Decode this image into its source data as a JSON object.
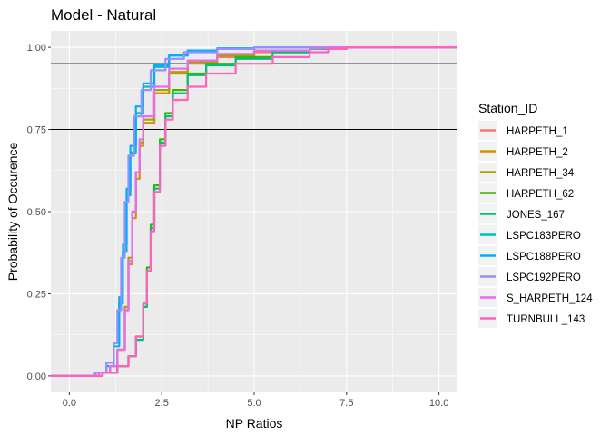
{
  "chart_data": {
    "type": "line",
    "title": "Model - Natural",
    "xlabel": "NP Ratios",
    "ylabel": "Probability of Occurence",
    "xlim": [
      -0.5,
      10.5
    ],
    "ylim": [
      -0.05,
      1.05
    ],
    "x_ticks": [
      {
        "value": 0,
        "label": "0.0"
      },
      {
        "value": 2.5,
        "label": "2.5"
      },
      {
        "value": 5,
        "label": "5.0"
      },
      {
        "value": 7.5,
        "label": "7.5"
      },
      {
        "value": 10,
        "label": "10.0"
      }
    ],
    "y_ticks": [
      {
        "value": 0,
        "label": "0.00"
      },
      {
        "value": 0.25,
        "label": "0.25"
      },
      {
        "value": 0.5,
        "label": "0.50"
      },
      {
        "value": 0.75,
        "label": "0.75"
      },
      {
        "value": 1,
        "label": "1.00"
      }
    ],
    "reference_lines": [
      0.95,
      0.75
    ],
    "grid": true,
    "legend": {
      "title": "Station_ID",
      "placement": "right"
    },
    "series": [
      {
        "name": "HARPETH_1",
        "color": "#F8766D",
        "points": [
          [
            -0.5,
            0
          ],
          [
            0.4,
            0
          ],
          [
            0.8,
            0.01
          ],
          [
            1.1,
            0.03
          ],
          [
            1.3,
            0.08
          ],
          [
            1.5,
            0.2
          ],
          [
            1.6,
            0.35
          ],
          [
            1.7,
            0.5
          ],
          [
            1.8,
            0.62
          ],
          [
            1.9,
            0.71
          ],
          [
            2.0,
            0.77
          ],
          [
            2.3,
            0.86
          ],
          [
            2.7,
            0.92
          ],
          [
            3.2,
            0.95
          ],
          [
            4.0,
            0.97
          ],
          [
            5.0,
            0.985
          ],
          [
            6.5,
            0.995
          ],
          [
            7.5,
            1
          ],
          [
            10.5,
            1
          ]
        ]
      },
      {
        "name": "HARPETH_2",
        "color": "#D89000",
        "points": [
          [
            -0.5,
            0
          ],
          [
            0.4,
            0
          ],
          [
            0.8,
            0.01
          ],
          [
            1.1,
            0.03
          ],
          [
            1.3,
            0.08
          ],
          [
            1.5,
            0.2
          ],
          [
            1.6,
            0.34
          ],
          [
            1.7,
            0.48
          ],
          [
            1.8,
            0.6
          ],
          [
            1.9,
            0.7
          ],
          [
            2.0,
            0.77
          ],
          [
            2.3,
            0.86
          ],
          [
            2.7,
            0.92
          ],
          [
            3.2,
            0.955
          ],
          [
            4.0,
            0.975
          ],
          [
            5.0,
            0.99
          ],
          [
            6.5,
            0.997
          ],
          [
            7.2,
            1
          ],
          [
            10.5,
            1
          ]
        ]
      },
      {
        "name": "HARPETH_34",
        "color": "#A3A500",
        "points": [
          [
            -0.5,
            0
          ],
          [
            0.4,
            0
          ],
          [
            0.8,
            0.01
          ],
          [
            1.1,
            0.03
          ],
          [
            1.3,
            0.08
          ],
          [
            1.5,
            0.21
          ],
          [
            1.6,
            0.36
          ],
          [
            1.7,
            0.5
          ],
          [
            1.8,
            0.62
          ],
          [
            1.9,
            0.71
          ],
          [
            2.0,
            0.78
          ],
          [
            2.3,
            0.87
          ],
          [
            2.7,
            0.925
          ],
          [
            3.2,
            0.955
          ],
          [
            4.0,
            0.975
          ],
          [
            5.0,
            0.99
          ],
          [
            6.5,
            0.997
          ],
          [
            7.2,
            1
          ],
          [
            10.5,
            1
          ]
        ]
      },
      {
        "name": "HARPETH_62",
        "color": "#39B600",
        "points": [
          [
            -0.5,
            0
          ],
          [
            0.5,
            0
          ],
          [
            0.9,
            0.01
          ],
          [
            1.3,
            0.03
          ],
          [
            1.6,
            0.06
          ],
          [
            1.8,
            0.12
          ],
          [
            2.0,
            0.22
          ],
          [
            2.1,
            0.33
          ],
          [
            2.2,
            0.46
          ],
          [
            2.3,
            0.58
          ],
          [
            2.45,
            0.72
          ],
          [
            2.6,
            0.8
          ],
          [
            2.8,
            0.87
          ],
          [
            3.2,
            0.92
          ],
          [
            3.7,
            0.95
          ],
          [
            4.5,
            0.97
          ],
          [
            5.5,
            0.985
          ],
          [
            6.5,
            0.995
          ],
          [
            7.5,
            1
          ],
          [
            10.5,
            1
          ]
        ]
      },
      {
        "name": "JONES_167",
        "color": "#00BF7D",
        "points": [
          [
            -0.5,
            0
          ],
          [
            0.5,
            0
          ],
          [
            0.9,
            0.01
          ],
          [
            1.3,
            0.03
          ],
          [
            1.6,
            0.06
          ],
          [
            1.8,
            0.11
          ],
          [
            2.0,
            0.21
          ],
          [
            2.1,
            0.32
          ],
          [
            2.2,
            0.45
          ],
          [
            2.3,
            0.57
          ],
          [
            2.45,
            0.71
          ],
          [
            2.6,
            0.79
          ],
          [
            2.8,
            0.86
          ],
          [
            3.2,
            0.915
          ],
          [
            3.7,
            0.945
          ],
          [
            4.5,
            0.965
          ],
          [
            5.5,
            0.985
          ],
          [
            6.5,
            0.995
          ],
          [
            7.5,
            1
          ],
          [
            10.5,
            1
          ]
        ]
      },
      {
        "name": "LSPC183PERO",
        "color": "#00BFC4",
        "points": [
          [
            -0.5,
            0
          ],
          [
            0.3,
            0
          ],
          [
            0.7,
            0.01
          ],
          [
            1.0,
            0.03
          ],
          [
            1.2,
            0.09
          ],
          [
            1.35,
            0.22
          ],
          [
            1.45,
            0.38
          ],
          [
            1.55,
            0.55
          ],
          [
            1.65,
            0.68
          ],
          [
            1.8,
            0.8
          ],
          [
            2.0,
            0.88
          ],
          [
            2.3,
            0.94
          ],
          [
            2.7,
            0.975
          ],
          [
            3.2,
            0.99
          ],
          [
            4.0,
            0.997
          ],
          [
            5.0,
            1
          ],
          [
            10.5,
            1
          ]
        ]
      },
      {
        "name": "LSPC188PERO",
        "color": "#00B0F6",
        "points": [
          [
            -0.5,
            0
          ],
          [
            0.3,
            0
          ],
          [
            0.7,
            0.01
          ],
          [
            1.0,
            0.04
          ],
          [
            1.2,
            0.1
          ],
          [
            1.35,
            0.24
          ],
          [
            1.45,
            0.4
          ],
          [
            1.55,
            0.57
          ],
          [
            1.65,
            0.7
          ],
          [
            1.8,
            0.82
          ],
          [
            2.0,
            0.89
          ],
          [
            2.3,
            0.945
          ],
          [
            2.7,
            0.975
          ],
          [
            3.2,
            0.99
          ],
          [
            4.0,
            0.997
          ],
          [
            5.0,
            1
          ],
          [
            10.5,
            1
          ]
        ]
      },
      {
        "name": "LSPC192PERO",
        "color": "#9590FF",
        "points": [
          [
            -0.5,
            0
          ],
          [
            0.3,
            0
          ],
          [
            0.7,
            0.01
          ],
          [
            1.0,
            0.04
          ],
          [
            1.2,
            0.1
          ],
          [
            1.3,
            0.2
          ],
          [
            1.4,
            0.36
          ],
          [
            1.5,
            0.53
          ],
          [
            1.6,
            0.67
          ],
          [
            1.75,
            0.79
          ],
          [
            1.95,
            0.87
          ],
          [
            2.2,
            0.93
          ],
          [
            2.6,
            0.965
          ],
          [
            3.1,
            0.985
          ],
          [
            4.0,
            0.995
          ],
          [
            5.0,
            1
          ],
          [
            10.5,
            1
          ]
        ]
      },
      {
        "name": "S_HARPETH_124",
        "color": "#E76BF3",
        "points": [
          [
            -0.5,
            0
          ],
          [
            0.4,
            0
          ],
          [
            0.8,
            0.01
          ],
          [
            1.1,
            0.03
          ],
          [
            1.3,
            0.08
          ],
          [
            1.5,
            0.2
          ],
          [
            1.6,
            0.35
          ],
          [
            1.7,
            0.5
          ],
          [
            1.8,
            0.62
          ],
          [
            1.9,
            0.72
          ],
          [
            2.0,
            0.79
          ],
          [
            2.3,
            0.88
          ],
          [
            2.7,
            0.935
          ],
          [
            3.2,
            0.96
          ],
          [
            4.0,
            0.98
          ],
          [
            5.0,
            0.99
          ],
          [
            6.5,
            0.997
          ],
          [
            7.0,
            1
          ],
          [
            10.5,
            1
          ]
        ]
      },
      {
        "name": "TURNBULL_143",
        "color": "#FF62BC",
        "points": [
          [
            -0.5,
            0
          ],
          [
            0.5,
            0
          ],
          [
            0.9,
            0.01
          ],
          [
            1.3,
            0.03
          ],
          [
            1.6,
            0.06
          ],
          [
            1.8,
            0.12
          ],
          [
            2.0,
            0.22
          ],
          [
            2.1,
            0.32
          ],
          [
            2.2,
            0.44
          ],
          [
            2.3,
            0.56
          ],
          [
            2.45,
            0.7
          ],
          [
            2.6,
            0.78
          ],
          [
            2.8,
            0.84
          ],
          [
            3.2,
            0.88
          ],
          [
            3.7,
            0.92
          ],
          [
            4.5,
            0.95
          ],
          [
            5.5,
            0.97
          ],
          [
            6.5,
            0.985
          ],
          [
            7.0,
            0.995
          ],
          [
            7.5,
            1
          ],
          [
            10.5,
            1
          ]
        ]
      }
    ]
  }
}
